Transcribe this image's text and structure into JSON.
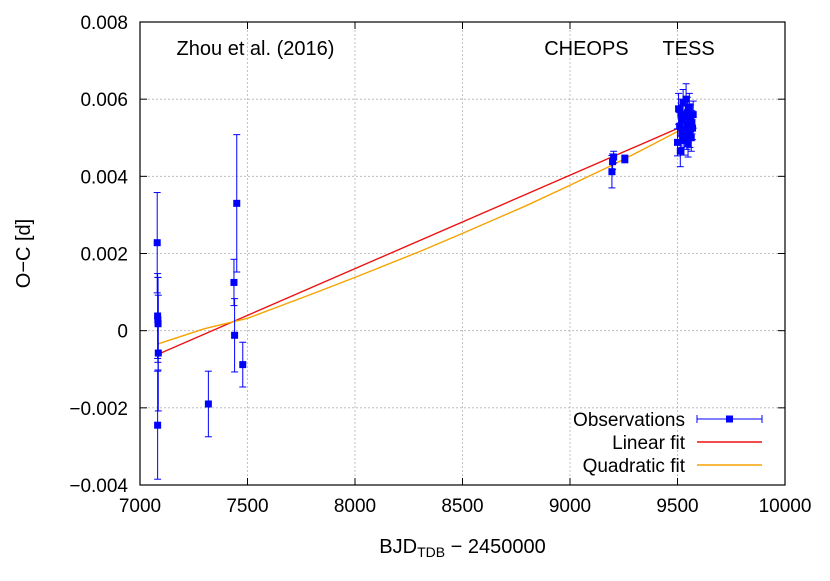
{
  "chart_data": {
    "type": "scatter",
    "xlabel_main": "BJD",
    "xlabel_sub": "TDB",
    "xlabel_rest": " − 2450000",
    "ylabel": "O−C [d]",
    "xlim": [
      7000,
      10000
    ],
    "ylim": [
      -0.004,
      0.008
    ],
    "xticks": [
      7000,
      7500,
      8000,
      8500,
      9000,
      9500,
      10000
    ],
    "xtick_labels": [
      "7000",
      "7500",
      "8000",
      "8500",
      "9000",
      "9500",
      "10000"
    ],
    "yticks": [
      -0.004,
      -0.002,
      0,
      0.002,
      0.004,
      0.006,
      0.008
    ],
    "ytick_labels": [
      "−0.004",
      "−0.002",
      "0",
      "0.002",
      "0.004",
      "0.006",
      "0.008"
    ],
    "grid": true,
    "legend_position": "bottom-right",
    "annotations": [
      {
        "text": "Zhou et al. (2016)",
        "x": 7170,
        "y": 0.00715
      },
      {
        "text": "CHEOPS",
        "x": 8880,
        "y": 0.00715
      },
      {
        "text": "TESS",
        "x": 9430,
        "y": 0.00715
      }
    ],
    "series": [
      {
        "name": "Observations",
        "kind": "points",
        "color": "#0000ff",
        "points": [
          {
            "x": 7080,
            "y": 0.00228,
            "err": 0.0013
          },
          {
            "x": 7082,
            "y": 0.00038,
            "err": 0.0011
          },
          {
            "x": 7083,
            "y": 0.00028,
            "err": 0.0011
          },
          {
            "x": 7084,
            "y": 0.00018,
            "err": 0.0012
          },
          {
            "x": 7085,
            "y": -0.00058,
            "err": 0.0015
          },
          {
            "x": 7082,
            "y": -0.00245,
            "err": 0.0014
          },
          {
            "x": 7318,
            "y": -0.0019,
            "err": 0.00085
          },
          {
            "x": 7437,
            "y": 0.00125,
            "err": 0.0006
          },
          {
            "x": 7440,
            "y": -0.00012,
            "err": 0.00095
          },
          {
            "x": 7450,
            "y": 0.0033,
            "err": 0.00178
          },
          {
            "x": 7478,
            "y": -0.00088,
            "err": 0.00058
          },
          {
            "x": 9195,
            "y": 0.00412,
            "err": 0.00042
          },
          {
            "x": 9198,
            "y": 0.00438,
            "err": 0.0002
          },
          {
            "x": 9203,
            "y": 0.0045,
            "err": 0.00015
          },
          {
            "x": 9255,
            "y": 0.00445,
            "err": 0.0001
          },
          {
            "x": 9500,
            "y": 0.00488,
            "err": 0.00035
          },
          {
            "x": 9505,
            "y": 0.00575,
            "err": 0.0004
          },
          {
            "x": 9510,
            "y": 0.0053,
            "err": 0.00035
          },
          {
            "x": 9513,
            "y": 0.00465,
            "err": 0.0004
          },
          {
            "x": 9516,
            "y": 0.0056,
            "err": 0.0004
          },
          {
            "x": 9520,
            "y": 0.0051,
            "err": 0.00035
          },
          {
            "x": 9523,
            "y": 0.00545,
            "err": 0.0004
          },
          {
            "x": 9526,
            "y": 0.0059,
            "err": 0.00035
          },
          {
            "x": 9530,
            "y": 0.00495,
            "err": 0.0004
          },
          {
            "x": 9533,
            "y": 0.0052,
            "err": 0.00035
          },
          {
            "x": 9536,
            "y": 0.00555,
            "err": 0.0004
          },
          {
            "x": 9540,
            "y": 0.006,
            "err": 0.0004
          },
          {
            "x": 9543,
            "y": 0.00505,
            "err": 0.00035
          },
          {
            "x": 9546,
            "y": 0.00565,
            "err": 0.0004
          },
          {
            "x": 9549,
            "y": 0.00485,
            "err": 0.00035
          },
          {
            "x": 9552,
            "y": 0.00535,
            "err": 0.0004
          },
          {
            "x": 9555,
            "y": 0.0058,
            "err": 0.00035
          },
          {
            "x": 9558,
            "y": 0.00515,
            "err": 0.0004
          },
          {
            "x": 9561,
            "y": 0.0055,
            "err": 0.00035
          },
          {
            "x": 9564,
            "y": 0.005,
            "err": 0.00035
          },
          {
            "x": 9567,
            "y": 0.0054,
            "err": 0.0003
          },
          {
            "x": 9570,
            "y": 0.00525,
            "err": 0.0003
          },
          {
            "x": 9573,
            "y": 0.0056,
            "err": 0.00035
          }
        ]
      },
      {
        "name": "Linear fit",
        "kind": "line",
        "color": "#ee1111",
        "x": [
          7080,
          9575
        ],
        "y": [
          -0.00062,
          0.00542
        ]
      },
      {
        "name": "Quadratic fit",
        "kind": "line",
        "color": "#f5a300",
        "x": [
          7080,
          7300,
          7500,
          7800,
          8000,
          8300,
          8500,
          8800,
          9000,
          9200,
          9400,
          9575
        ],
        "y": [
          -0.00035,
          5e-05,
          0.00032,
          0.00095,
          0.00138,
          0.00205,
          0.00252,
          0.00325,
          0.00377,
          0.0043,
          0.00487,
          0.00538
        ]
      }
    ]
  }
}
